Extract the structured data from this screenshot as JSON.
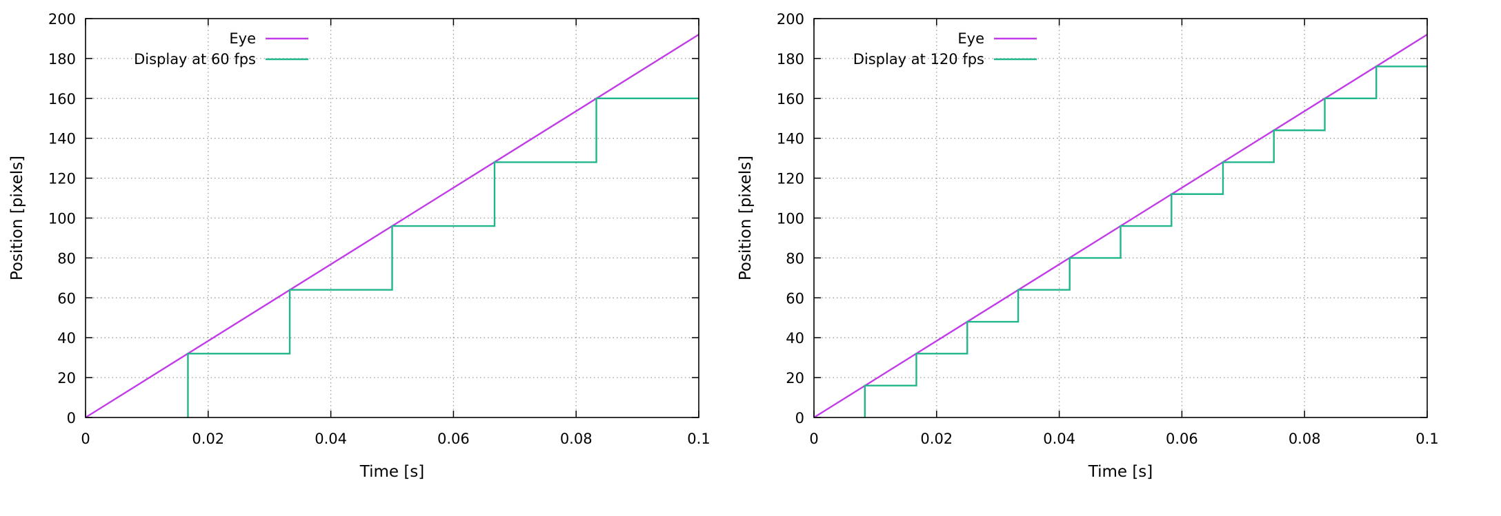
{
  "chart_data": [
    {
      "type": "line",
      "xlabel": "Time [s]",
      "ylabel": "Position [pixels]",
      "xlim": [
        0,
        0.1
      ],
      "ylim": [
        0,
        200
      ],
      "x_ticks": [
        0,
        0.02,
        0.04,
        0.06,
        0.08,
        0.1
      ],
      "x_tick_labels": [
        "0",
        "0.02",
        "0.04",
        "0.06",
        "0.08",
        "0.1"
      ],
      "y_ticks": [
        0,
        20,
        40,
        60,
        80,
        100,
        120,
        140,
        160,
        180,
        200
      ],
      "y_tick_labels": [
        "0",
        "20",
        "40",
        "60",
        "80",
        "100",
        "120",
        "140",
        "160",
        "180",
        "200"
      ],
      "grid": true,
      "legend_position": "top-left",
      "series": [
        {
          "name": "Eye",
          "color": "#c03ce6",
          "style": "line",
          "points": [
            [
              0,
              0
            ],
            [
              0.1,
              192
            ]
          ]
        },
        {
          "name": "Display at 60 fps",
          "color": "#20b58a",
          "style": "step",
          "points": [
            [
              0.0167,
              0
            ],
            [
              0.0167,
              32
            ],
            [
              0.0333,
              32
            ],
            [
              0.0333,
              64
            ],
            [
              0.05,
              64
            ],
            [
              0.05,
              96
            ],
            [
              0.0667,
              96
            ],
            [
              0.0667,
              128
            ],
            [
              0.0833,
              128
            ],
            [
              0.0833,
              160
            ],
            [
              0.1,
              160
            ]
          ]
        }
      ]
    },
    {
      "type": "line",
      "xlabel": "Time [s]",
      "ylabel": "Position [pixels]",
      "xlim": [
        0,
        0.1
      ],
      "ylim": [
        0,
        200
      ],
      "x_ticks": [
        0,
        0.02,
        0.04,
        0.06,
        0.08,
        0.1
      ],
      "x_tick_labels": [
        "0",
        "0.02",
        "0.04",
        "0.06",
        "0.08",
        "0.1"
      ],
      "y_ticks": [
        0,
        20,
        40,
        60,
        80,
        100,
        120,
        140,
        160,
        180,
        200
      ],
      "y_tick_labels": [
        "0",
        "20",
        "40",
        "60",
        "80",
        "100",
        "120",
        "140",
        "160",
        "180",
        "200"
      ],
      "grid": true,
      "legend_position": "top-left",
      "series": [
        {
          "name": "Eye",
          "color": "#c03ce6",
          "style": "line",
          "points": [
            [
              0,
              0
            ],
            [
              0.1,
              192
            ]
          ]
        },
        {
          "name": "Display at 120 fps",
          "color": "#20b58a",
          "style": "step",
          "points": [
            [
              0.0083,
              0
            ],
            [
              0.0083,
              16
            ],
            [
              0.0167,
              16
            ],
            [
              0.0167,
              32
            ],
            [
              0.025,
              32
            ],
            [
              0.025,
              48
            ],
            [
              0.0333,
              48
            ],
            [
              0.0333,
              64
            ],
            [
              0.0417,
              64
            ],
            [
              0.0417,
              80
            ],
            [
              0.05,
              80
            ],
            [
              0.05,
              96
            ],
            [
              0.0583,
              96
            ],
            [
              0.0583,
              112
            ],
            [
              0.0667,
              112
            ],
            [
              0.0667,
              128
            ],
            [
              0.075,
              128
            ],
            [
              0.075,
              144
            ],
            [
              0.0833,
              144
            ],
            [
              0.0833,
              160
            ],
            [
              0.0917,
              160
            ],
            [
              0.0917,
              176
            ],
            [
              0.1,
              176
            ]
          ]
        }
      ]
    }
  ]
}
